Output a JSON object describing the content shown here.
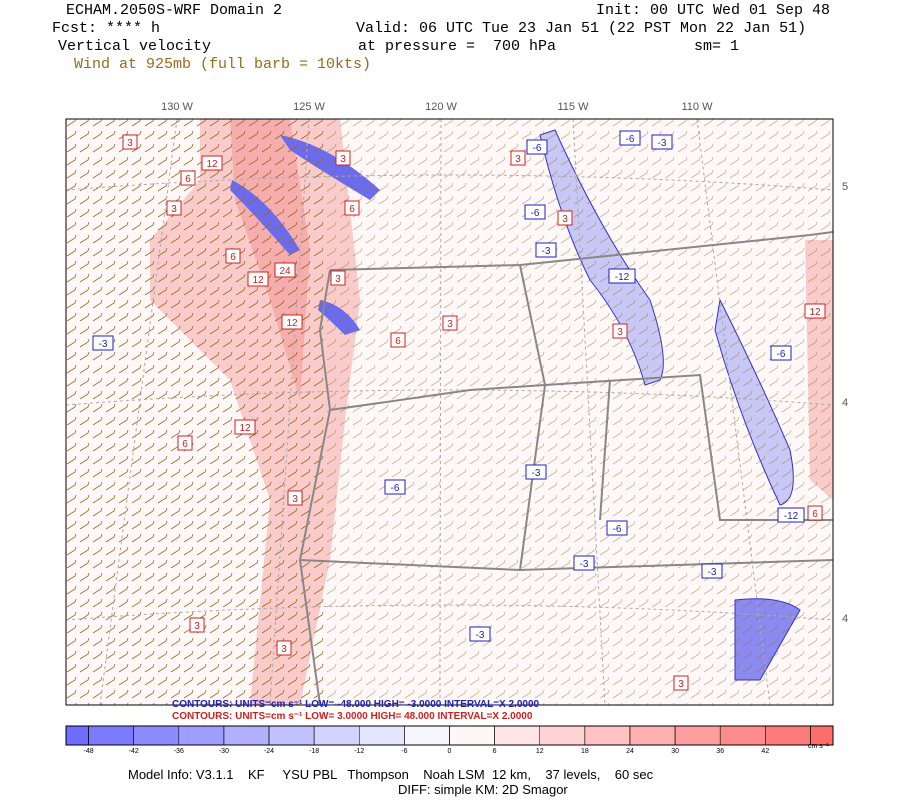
{
  "header": {
    "model": "ECHAM.2050S-WRF Domain 2",
    "init": "Init: 00 UTC Wed 01 Sep 48",
    "fcst": "Fcst: **** h",
    "valid": "Valid: 06 UTC Tue 23 Jan 51 (22 PST Mon 22 Jan 51)",
    "field": "Vertical velocity",
    "pressure": "at pressure =  700 hPa",
    "smooth": "sm= 1",
    "wind": "Wind at 925mb (full barb = 10kts)"
  },
  "map": {
    "lon_labels": [
      "130 W",
      "125 W",
      "120 W",
      "115 W",
      "110 W"
    ],
    "lat_labels": [
      "5",
      "4",
      "4"
    ],
    "contour_labels": [
      "3",
      "12",
      "3",
      "6",
      "6",
      "12",
      "24",
      "12",
      "3",
      "6",
      "3",
      "6",
      "3",
      "3",
      "-6",
      "-6",
      "3",
      "-3",
      "-12",
      "3",
      "-6",
      "-3",
      "-3",
      "6",
      "12",
      "3",
      "-6",
      "-3",
      "-6",
      "-12",
      "6",
      "-3",
      "3",
      "3",
      "-3",
      "12",
      "-6",
      "-3",
      "3"
    ],
    "contours_neg": "CONTOURS:  UNITS=cm s⁻¹  LOW= -48.000   HIGH= -3.0000   INTERVAL=X  2.0000",
    "contours_pos": "CONTOURS:  UNITS=cm s⁻¹  LOW=  3.0000   HIGH=  48.000   INTERVAL=X  2.0000"
  },
  "colorbar": {
    "lim": [
      -51,
      51
    ],
    "ticks": [
      -48,
      -42,
      -36,
      -30,
      -24,
      -18,
      -12,
      -6,
      0,
      6,
      12,
      18,
      24,
      30,
      36,
      42,
      48
    ],
    "units": "cm s⁻¹"
  },
  "footer": {
    "model_info": "Model Info: V3.1.1    KF     YSU PBL   Thompson    Noah LSM  12 km,    37 levels,    60 sec",
    "diff": "DIFF: simple KM: 2D Smagor"
  }
}
